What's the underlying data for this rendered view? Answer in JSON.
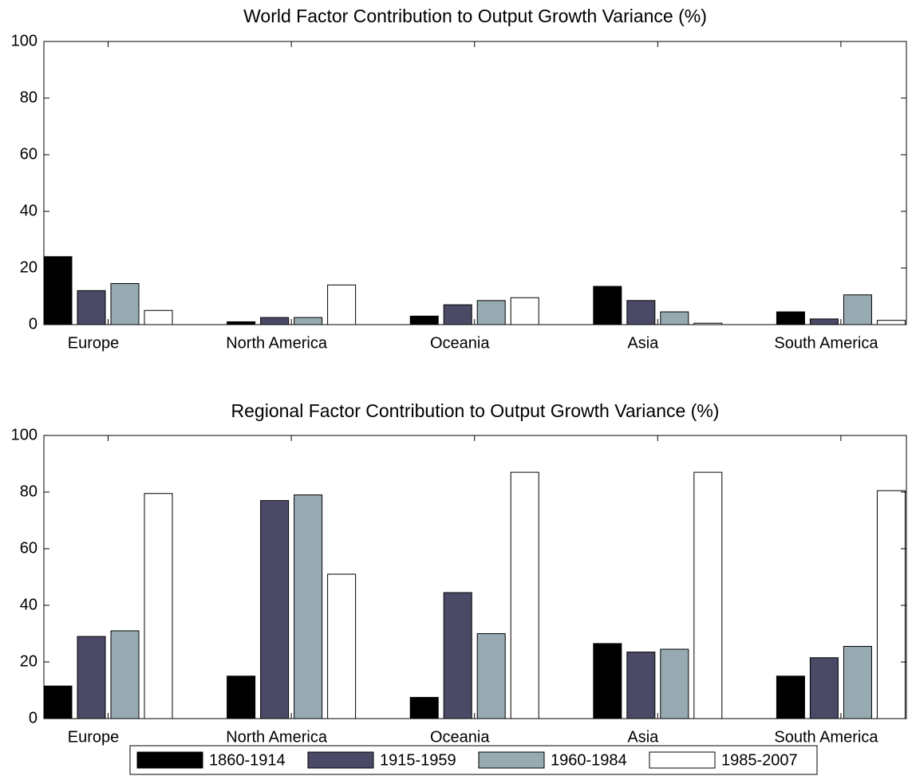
{
  "chart_data": [
    {
      "type": "bar",
      "title": "World Factor Contribution to Output Growth Variance (%)",
      "categories": [
        "Europe",
        "North America",
        "Oceania",
        "Asia",
        "South America"
      ],
      "series": [
        {
          "color": "#000000",
          "values": [
            24,
            1,
            3,
            13.5,
            4.5
          ]
        },
        {
          "color": "#4a4a66",
          "values": [
            12,
            2.5,
            7,
            8.5,
            2
          ]
        },
        {
          "color": "#97aab2",
          "values": [
            14.5,
            2.5,
            8.5,
            4.5,
            10.5
          ]
        },
        {
          "color": "#ffffff",
          "values": [
            5,
            14,
            9.5,
            0.5,
            1.5
          ]
        }
      ],
      "ylim": [
        0,
        100
      ],
      "yticks": [
        0,
        20,
        40,
        60,
        80,
        100
      ]
    },
    {
      "type": "bar",
      "title": "Regional Factor Contribution to Output Growth Variance (%)",
      "categories": [
        "Europe",
        "North America",
        "Oceania",
        "Asia",
        "South America"
      ],
      "series": [
        {
          "name": "1860-1914",
          "color": "#000000",
          "values": [
            11.5,
            15,
            7.5,
            26.5,
            15
          ]
        },
        {
          "name": "1915-1959",
          "color": "#4a4a66",
          "values": [
            29,
            77,
            44.5,
            23.5,
            21.5
          ]
        },
        {
          "name": "1960-1984",
          "color": "#97aab2",
          "values": [
            31,
            79,
            30,
            24.5,
            25.5
          ]
        },
        {
          "name": "1985-2007",
          "color": "#ffffff",
          "values": [
            79.5,
            51,
            87,
            87,
            80.5
          ]
        }
      ],
      "ylim": [
        0,
        100
      ],
      "yticks": [
        0,
        20,
        40,
        60,
        80,
        100
      ]
    }
  ]
}
